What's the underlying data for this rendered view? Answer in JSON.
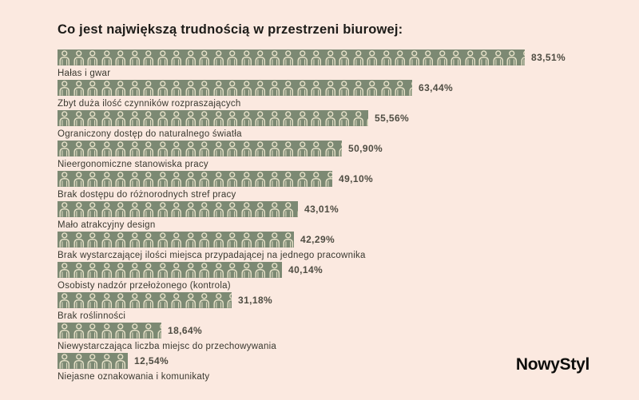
{
  "chart_data": {
    "type": "bar",
    "orientation": "horizontal",
    "bar_style": "person-pictogram-repeat",
    "title": "Co jest największą trudnością w przestrzeni biurowej:",
    "unit": "%",
    "decimal_separator": ",",
    "grid": false,
    "legend": "none",
    "xlim": [
      0,
      100
    ],
    "categories": [
      "Hałas i gwar",
      "Zbyt duża ilość czynników rozpraszających",
      "Ograniczony dostęp do naturalnego światła",
      "Nieergonomiczne stanowiska pracy",
      "Brak dostępu do różnorodnych stref pracy",
      "Mało atrakcyjny design",
      "Brak wystarczającej ilości miejsca przypadającej na jednego pracownika",
      "Osobisty nadzór przełożonego (kontrola)",
      "Brak roślinności",
      "Niewystarczająca liczba miejsc do przechowywania",
      "Niejasne oznakowania i komunikaty"
    ],
    "values": [
      83.51,
      63.44,
      55.56,
      50.9,
      49.1,
      43.01,
      42.29,
      40.14,
      31.18,
      18.64,
      12.54
    ],
    "value_labels": [
      "83,51%",
      "63,44%",
      "55,56%",
      "50,90%",
      "49,10%",
      "43,01%",
      "42,29%",
      "40,14%",
      "31,18%",
      "18,64%",
      "12,54%"
    ]
  },
  "icons": {
    "bar_unit": "person-icon"
  },
  "logo": {
    "text": "NowyStyl"
  },
  "colors": {
    "background": "#fbe9e0",
    "bar_fill": "#7c8973",
    "icon_stroke": "#e9e3ca",
    "title_text": "#1c1b18",
    "category_text": "#39382f",
    "value_text": "#4e4c42",
    "logo_text": "#0e0e0c"
  }
}
